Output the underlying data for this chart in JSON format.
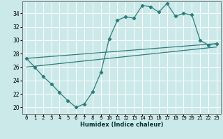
{
  "xlabel": "Humidex (Indice chaleur)",
  "x_ticks": [
    0,
    1,
    2,
    3,
    4,
    5,
    6,
    7,
    8,
    9,
    10,
    11,
    12,
    13,
    14,
    15,
    16,
    17,
    18,
    19,
    20,
    21,
    22,
    23
  ],
  "xlim": [
    -0.5,
    23.5
  ],
  "ylim": [
    19.0,
    35.8
  ],
  "yticks": [
    20,
    22,
    24,
    26,
    28,
    30,
    32,
    34
  ],
  "bg_color": "#cce9e9",
  "line_color": "#2d7d7d",
  "grid_color": "#ffffff",
  "main_line": {
    "x": [
      0,
      1,
      2,
      3,
      4,
      5,
      6,
      7,
      8,
      9,
      10,
      11,
      12,
      13,
      14,
      15,
      16,
      17,
      18,
      19,
      20,
      21,
      22,
      23
    ],
    "y": [
      27.3,
      26.0,
      24.6,
      23.5,
      22.2,
      21.0,
      20.0,
      20.5,
      22.3,
      25.2,
      30.2,
      33.0,
      33.5,
      33.3,
      35.2,
      35.0,
      34.2,
      35.5,
      33.6,
      34.0,
      33.8,
      30.0,
      29.3,
      29.5
    ]
  },
  "upper_line": {
    "x": [
      0,
      23
    ],
    "y": [
      27.3,
      29.5
    ]
  },
  "lower_line": {
    "x": [
      0,
      23
    ],
    "y": [
      26.0,
      29.0
    ]
  },
  "xlabel_fontsize": 6.0,
  "tick_fontsize": 5.2,
  "ytick_fontsize": 5.5
}
